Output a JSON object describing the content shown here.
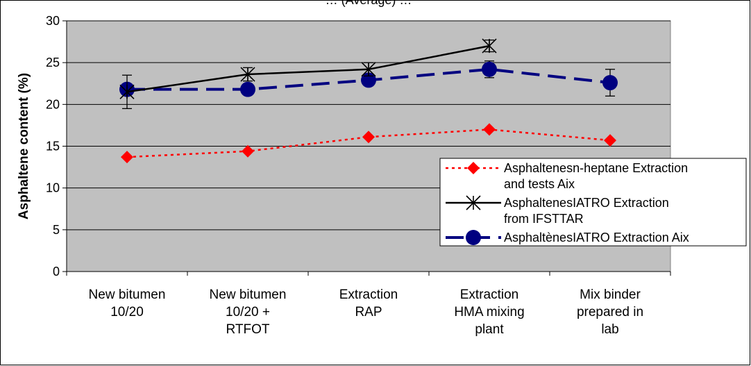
{
  "chart_data": {
    "type": "line",
    "title": "… (Average) …",
    "ylabel": "Asphaltene content (%)",
    "xlabel": "",
    "ylim": [
      0,
      30
    ],
    "yticks": [
      0,
      5,
      10,
      15,
      20,
      25,
      30
    ],
    "grid": true,
    "legend_position": "right",
    "categories": [
      [
        "New bitumen",
        "10/20"
      ],
      [
        "New bitumen",
        "10/20 +",
        "RTFOT"
      ],
      [
        "Extraction",
        "RAP"
      ],
      [
        "Extraction",
        "HMA mixing",
        "plant"
      ],
      [
        "Mix binder",
        "prepared in",
        "lab"
      ]
    ],
    "series": [
      {
        "name": [
          "Asphaltenesn-heptane Extraction",
          "and tests Aix"
        ],
        "values": [
          13.7,
          14.4,
          16.1,
          17.0,
          15.7
        ],
        "color": "#ff0000",
        "style": "dotted",
        "marker": "diamond"
      },
      {
        "name": [
          "AsphaltenesIATRO Extraction",
          "from IFSTTAR"
        ],
        "values": [
          21.5,
          23.6,
          24.2,
          27.0,
          null
        ],
        "errors": [
          2.0,
          0.8,
          0.8,
          0.7,
          null
        ],
        "color": "#000000",
        "style": "solid",
        "marker": "x-star"
      },
      {
        "name": [
          "AsphaltènesIATRO Extraction Aix"
        ],
        "values": [
          21.8,
          21.8,
          22.9,
          24.2,
          22.6
        ],
        "errors": [
          0.0,
          0.0,
          0.0,
          1.0,
          1.6
        ],
        "color": "#000080",
        "style": "dashed",
        "marker": "circle"
      }
    ]
  }
}
